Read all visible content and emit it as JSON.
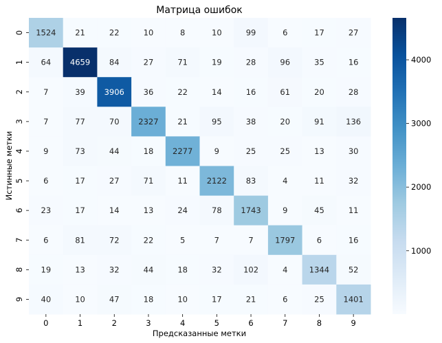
{
  "chart_data": {
    "type": "heatmap",
    "title": "Матрица ошибок",
    "xlabel": "Предсказанные метки",
    "ylabel": "Истинные метки",
    "x_categories": [
      "0",
      "1",
      "2",
      "3",
      "4",
      "5",
      "6",
      "7",
      "8",
      "9"
    ],
    "y_categories": [
      "0",
      "1",
      "2",
      "3",
      "4",
      "5",
      "6",
      "7",
      "8",
      "9"
    ],
    "values": [
      [
        1524,
        21,
        22,
        10,
        8,
        10,
        99,
        6,
        17,
        27
      ],
      [
        64,
        4659,
        84,
        27,
        71,
        19,
        28,
        96,
        35,
        16
      ],
      [
        7,
        39,
        3906,
        36,
        22,
        14,
        16,
        61,
        20,
        28
      ],
      [
        7,
        77,
        70,
        2327,
        21,
        95,
        38,
        20,
        91,
        136
      ],
      [
        9,
        73,
        44,
        18,
        2277,
        9,
        25,
        25,
        13,
        30
      ],
      [
        6,
        17,
        27,
        71,
        11,
        2122,
        83,
        4,
        11,
        32
      ],
      [
        23,
        17,
        14,
        13,
        24,
        78,
        1743,
        9,
        45,
        11
      ],
      [
        6,
        81,
        72,
        22,
        5,
        7,
        7,
        1797,
        6,
        16
      ],
      [
        19,
        13,
        32,
        44,
        18,
        32,
        102,
        4,
        1344,
        52
      ],
      [
        40,
        10,
        47,
        18,
        10,
        17,
        21,
        6,
        25,
        1401
      ]
    ],
    "colormap": "Blues",
    "colorbar": {
      "range": [
        4,
        4659
      ],
      "ticks": [
        1000,
        2000,
        3000,
        4000
      ],
      "tick_labels": [
        "1000",
        "2000",
        "3000",
        "4000"
      ]
    },
    "grid": false,
    "legend": "colorbar-right"
  }
}
